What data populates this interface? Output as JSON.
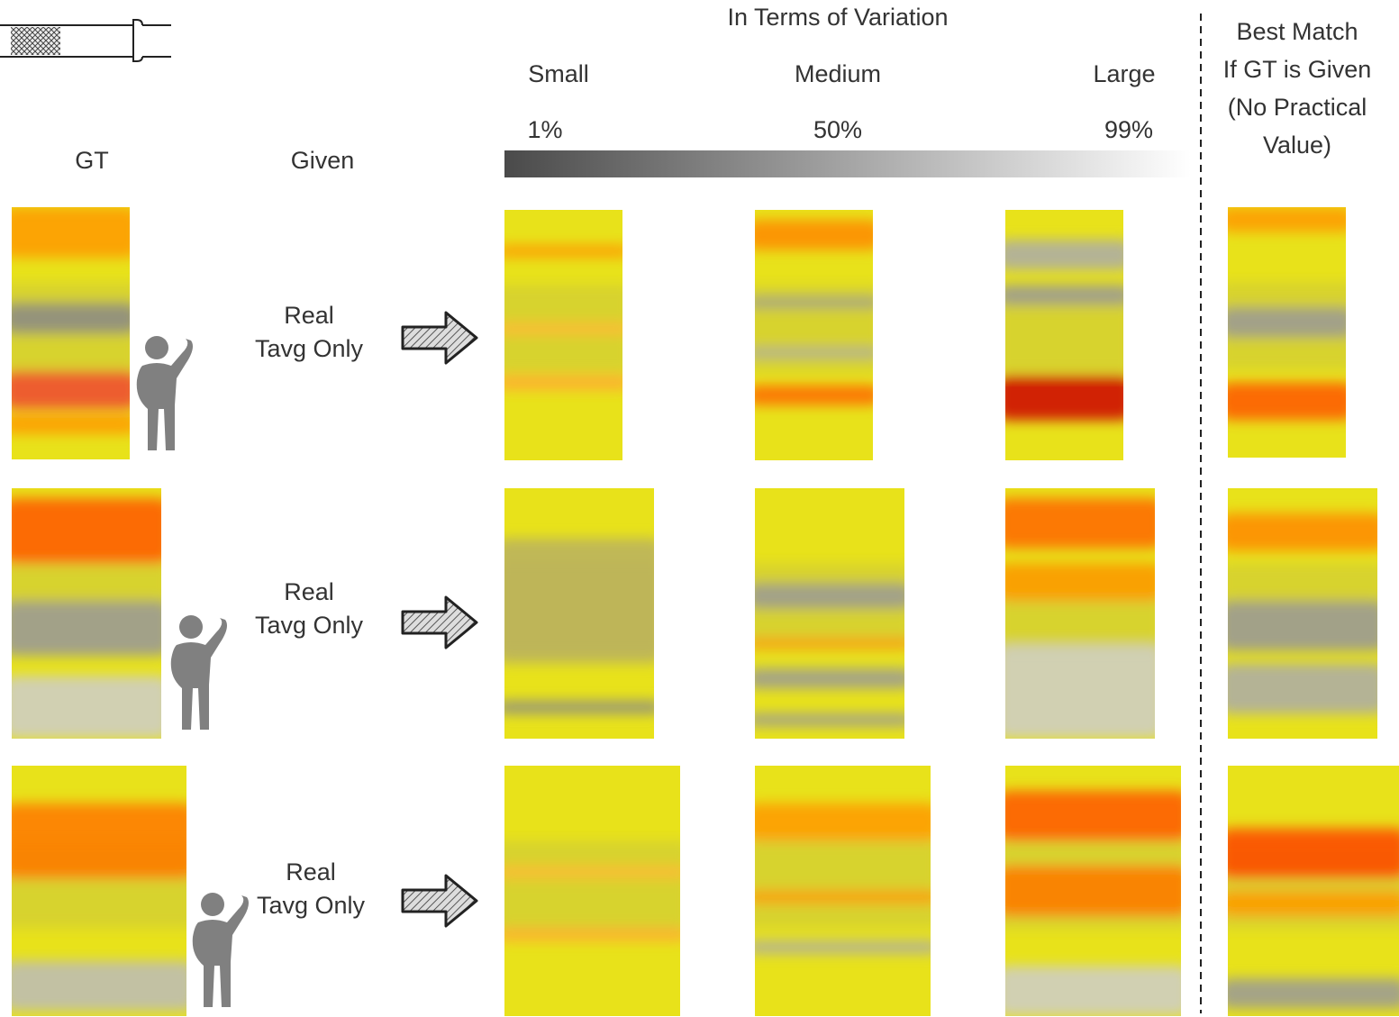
{
  "header": {
    "title": "In Terms of Variation",
    "levels": [
      "Small",
      "Medium",
      "Large"
    ],
    "percentiles": [
      "1%",
      "50%",
      "99%"
    ],
    "best_match": [
      "Best Match",
      "If GT is Given",
      "(No Practical",
      "Value)"
    ]
  },
  "columns": {
    "gt": "GT",
    "given": "Given"
  },
  "rows": [
    {
      "given": [
        "Real",
        "Tavg Only"
      ]
    },
    {
      "given": [
        "Real",
        "Tavg Only"
      ]
    },
    {
      "given": [
        "Real",
        "Tavg Only"
      ]
    }
  ]
}
